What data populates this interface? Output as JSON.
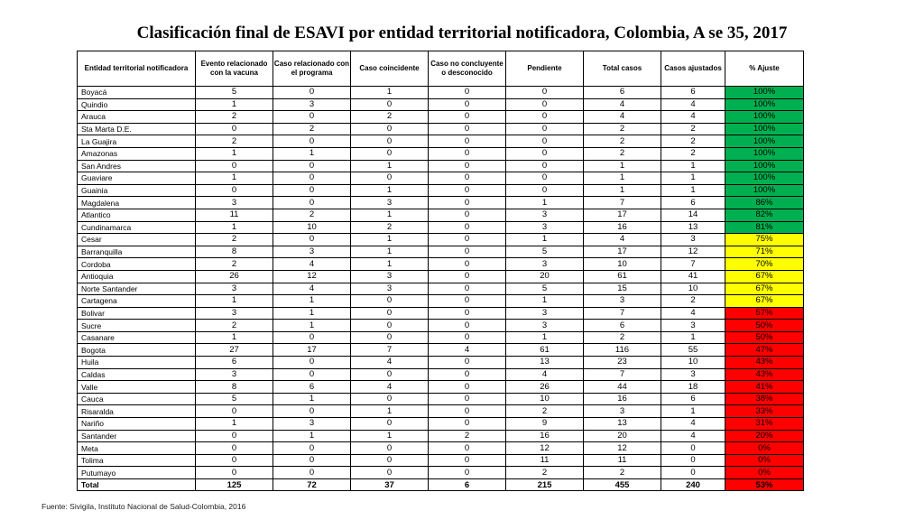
{
  "title": "Clasificación final de ESAVI por entidad territorial notificadora, Colombia,  A se 35, 2017",
  "colors": {
    "green": "#00b050",
    "yellow": "#ffff00",
    "red": "#ff0000"
  },
  "headers": [
    "Entidad territorial notificadora",
    "Evento relacionado con la vacuna",
    "Caso relacionado con el programa",
    "Caso coincidente",
    "Caso no concluyente o desconocido",
    "Pendiente",
    "Total casos",
    "Casos ajustados",
    "% Ajuste"
  ],
  "rows": [
    {
      "entidad": "Boyacá",
      "evento": "5",
      "programa": "0",
      "coincidente": "1",
      "no_concluyente": "0",
      "pendiente": "0",
      "total": "6",
      "ajustados": "6",
      "ajuste": "100%",
      "status": "green"
    },
    {
      "entidad": "Quindio",
      "evento": "1",
      "programa": "3",
      "coincidente": "0",
      "no_concluyente": "0",
      "pendiente": "0",
      "total": "4",
      "ajustados": "4",
      "ajuste": "100%",
      "status": "green"
    },
    {
      "entidad": "Arauca",
      "evento": "2",
      "programa": "0",
      "coincidente": "2",
      "no_concluyente": "0",
      "pendiente": "0",
      "total": "4",
      "ajustados": "4",
      "ajuste": "100%",
      "status": "green"
    },
    {
      "entidad": "Sta Marta D.E.",
      "evento": "0",
      "programa": "2",
      "coincidente": "0",
      "no_concluyente": "0",
      "pendiente": "0",
      "total": "2",
      "ajustados": "2",
      "ajuste": "100%",
      "status": "green"
    },
    {
      "entidad": "La Guajira",
      "evento": "2",
      "programa": "0",
      "coincidente": "0",
      "no_concluyente": "0",
      "pendiente": "0",
      "total": "2",
      "ajustados": "2",
      "ajuste": "100%",
      "status": "green"
    },
    {
      "entidad": "Amazonas",
      "evento": "1",
      "programa": "1",
      "coincidente": "0",
      "no_concluyente": "0",
      "pendiente": "0",
      "total": "2",
      "ajustados": "2",
      "ajuste": "100%",
      "status": "green"
    },
    {
      "entidad": "San Andres",
      "evento": "0",
      "programa": "0",
      "coincidente": "1",
      "no_concluyente": "0",
      "pendiente": "0",
      "total": "1",
      "ajustados": "1",
      "ajuste": "100%",
      "status": "green"
    },
    {
      "entidad": "Guaviare",
      "evento": "1",
      "programa": "0",
      "coincidente": "0",
      "no_concluyente": "0",
      "pendiente": "0",
      "total": "1",
      "ajustados": "1",
      "ajuste": "100%",
      "status": "green"
    },
    {
      "entidad": "Guainia",
      "evento": "0",
      "programa": "0",
      "coincidente": "1",
      "no_concluyente": "0",
      "pendiente": "0",
      "total": "1",
      "ajustados": "1",
      "ajuste": "100%",
      "status": "green"
    },
    {
      "entidad": "Magdalena",
      "evento": "3",
      "programa": "0",
      "coincidente": "3",
      "no_concluyente": "0",
      "pendiente": "1",
      "total": "7",
      "ajustados": "6",
      "ajuste": "86%",
      "status": "green"
    },
    {
      "entidad": "Atlantico",
      "evento": "11",
      "programa": "2",
      "coincidente": "1",
      "no_concluyente": "0",
      "pendiente": "3",
      "total": "17",
      "ajustados": "14",
      "ajuste": "82%",
      "status": "green"
    },
    {
      "entidad": "Cundinamarca",
      "evento": "1",
      "programa": "10",
      "coincidente": "2",
      "no_concluyente": "0",
      "pendiente": "3",
      "total": "16",
      "ajustados": "13",
      "ajuste": "81%",
      "status": "green"
    },
    {
      "entidad": "Cesar",
      "evento": "2",
      "programa": "0",
      "coincidente": "1",
      "no_concluyente": "0",
      "pendiente": "1",
      "total": "4",
      "ajustados": "3",
      "ajuste": "75%",
      "status": "yellow"
    },
    {
      "entidad": "Barranquilla",
      "evento": "8",
      "programa": "3",
      "coincidente": "1",
      "no_concluyente": "0",
      "pendiente": "5",
      "total": "17",
      "ajustados": "12",
      "ajuste": "71%",
      "status": "yellow"
    },
    {
      "entidad": "Cordoba",
      "evento": "2",
      "programa": "4",
      "coincidente": "1",
      "no_concluyente": "0",
      "pendiente": "3",
      "total": "10",
      "ajustados": "7",
      "ajuste": "70%",
      "status": "yellow"
    },
    {
      "entidad": "Antioquia",
      "evento": "26",
      "programa": "12",
      "coincidente": "3",
      "no_concluyente": "0",
      "pendiente": "20",
      "total": "61",
      "ajustados": "41",
      "ajuste": "67%",
      "status": "yellow"
    },
    {
      "entidad": "Norte Santander",
      "evento": "3",
      "programa": "4",
      "coincidente": "3",
      "no_concluyente": "0",
      "pendiente": "5",
      "total": "15",
      "ajustados": "10",
      "ajuste": "67%",
      "status": "yellow"
    },
    {
      "entidad": "Cartagena",
      "evento": "1",
      "programa": "1",
      "coincidente": "0",
      "no_concluyente": "0",
      "pendiente": "1",
      "total": "3",
      "ajustados": "2",
      "ajuste": "67%",
      "status": "yellow"
    },
    {
      "entidad": "Bolivar",
      "evento": "3",
      "programa": "1",
      "coincidente": "0",
      "no_concluyente": "0",
      "pendiente": "3",
      "total": "7",
      "ajustados": "4",
      "ajuste": "57%",
      "status": "red"
    },
    {
      "entidad": "Sucre",
      "evento": "2",
      "programa": "1",
      "coincidente": "0",
      "no_concluyente": "0",
      "pendiente": "3",
      "total": "6",
      "ajustados": "3",
      "ajuste": "50%",
      "status": "red"
    },
    {
      "entidad": "Casanare",
      "evento": "1",
      "programa": "0",
      "coincidente": "0",
      "no_concluyente": "0",
      "pendiente": "1",
      "total": "2",
      "ajustados": "1",
      "ajuste": "50%",
      "status": "red"
    },
    {
      "entidad": "Bogota",
      "evento": "27",
      "programa": "17",
      "coincidente": "7",
      "no_concluyente": "4",
      "pendiente": "61",
      "total": "116",
      "ajustados": "55",
      "ajuste": "47%",
      "status": "red"
    },
    {
      "entidad": "Huila",
      "evento": "6",
      "programa": "0",
      "coincidente": "4",
      "no_concluyente": "0",
      "pendiente": "13",
      "total": "23",
      "ajustados": "10",
      "ajuste": "43%",
      "status": "red"
    },
    {
      "entidad": "Caldas",
      "evento": "3",
      "programa": "0",
      "coincidente": "0",
      "no_concluyente": "0",
      "pendiente": "4",
      "total": "7",
      "ajustados": "3",
      "ajuste": "43%",
      "status": "red"
    },
    {
      "entidad": "Valle",
      "evento": "8",
      "programa": "6",
      "coincidente": "4",
      "no_concluyente": "0",
      "pendiente": "26",
      "total": "44",
      "ajustados": "18",
      "ajuste": "41%",
      "status": "red"
    },
    {
      "entidad": "Cauca",
      "evento": "5",
      "programa": "1",
      "coincidente": "0",
      "no_concluyente": "0",
      "pendiente": "10",
      "total": "16",
      "ajustados": "6",
      "ajuste": "38%",
      "status": "red"
    },
    {
      "entidad": "Risaralda",
      "evento": "0",
      "programa": "0",
      "coincidente": "1",
      "no_concluyente": "0",
      "pendiente": "2",
      "total": "3",
      "ajustados": "1",
      "ajuste": "33%",
      "status": "red"
    },
    {
      "entidad": "Nariño",
      "evento": "1",
      "programa": "3",
      "coincidente": "0",
      "no_concluyente": "0",
      "pendiente": "9",
      "total": "13",
      "ajustados": "4",
      "ajuste": "31%",
      "status": "red"
    },
    {
      "entidad": "Santander",
      "evento": "0",
      "programa": "1",
      "coincidente": "1",
      "no_concluyente": "2",
      "pendiente": "16",
      "total": "20",
      "ajustados": "4",
      "ajuste": "20%",
      "status": "red"
    },
    {
      "entidad": "Meta",
      "evento": "0",
      "programa": "0",
      "coincidente": "0",
      "no_concluyente": "0",
      "pendiente": "12",
      "total": "12",
      "ajustados": "0",
      "ajuste": "0%",
      "status": "red"
    },
    {
      "entidad": "Tolima",
      "evento": "0",
      "programa": "0",
      "coincidente": "0",
      "no_concluyente": "0",
      "pendiente": "11",
      "total": "11",
      "ajustados": "0",
      "ajuste": "0%",
      "status": "red"
    },
    {
      "entidad": "Putumayo",
      "evento": "0",
      "programa": "0",
      "coincidente": "0",
      "no_concluyente": "0",
      "pendiente": "2",
      "total": "2",
      "ajustados": "0",
      "ajuste": "0%",
      "status": "red"
    }
  ],
  "total": {
    "entidad": "Total",
    "evento": "125",
    "programa": "72",
    "coincidente": "37",
    "no_concluyente": "6",
    "pendiente": "215",
    "total": "455",
    "ajustados": "240",
    "ajuste": "53%",
    "status": "red"
  },
  "footnote": "Fuente: Sivigila, Instituto Nacional de Salud-Colombia, 2016"
}
